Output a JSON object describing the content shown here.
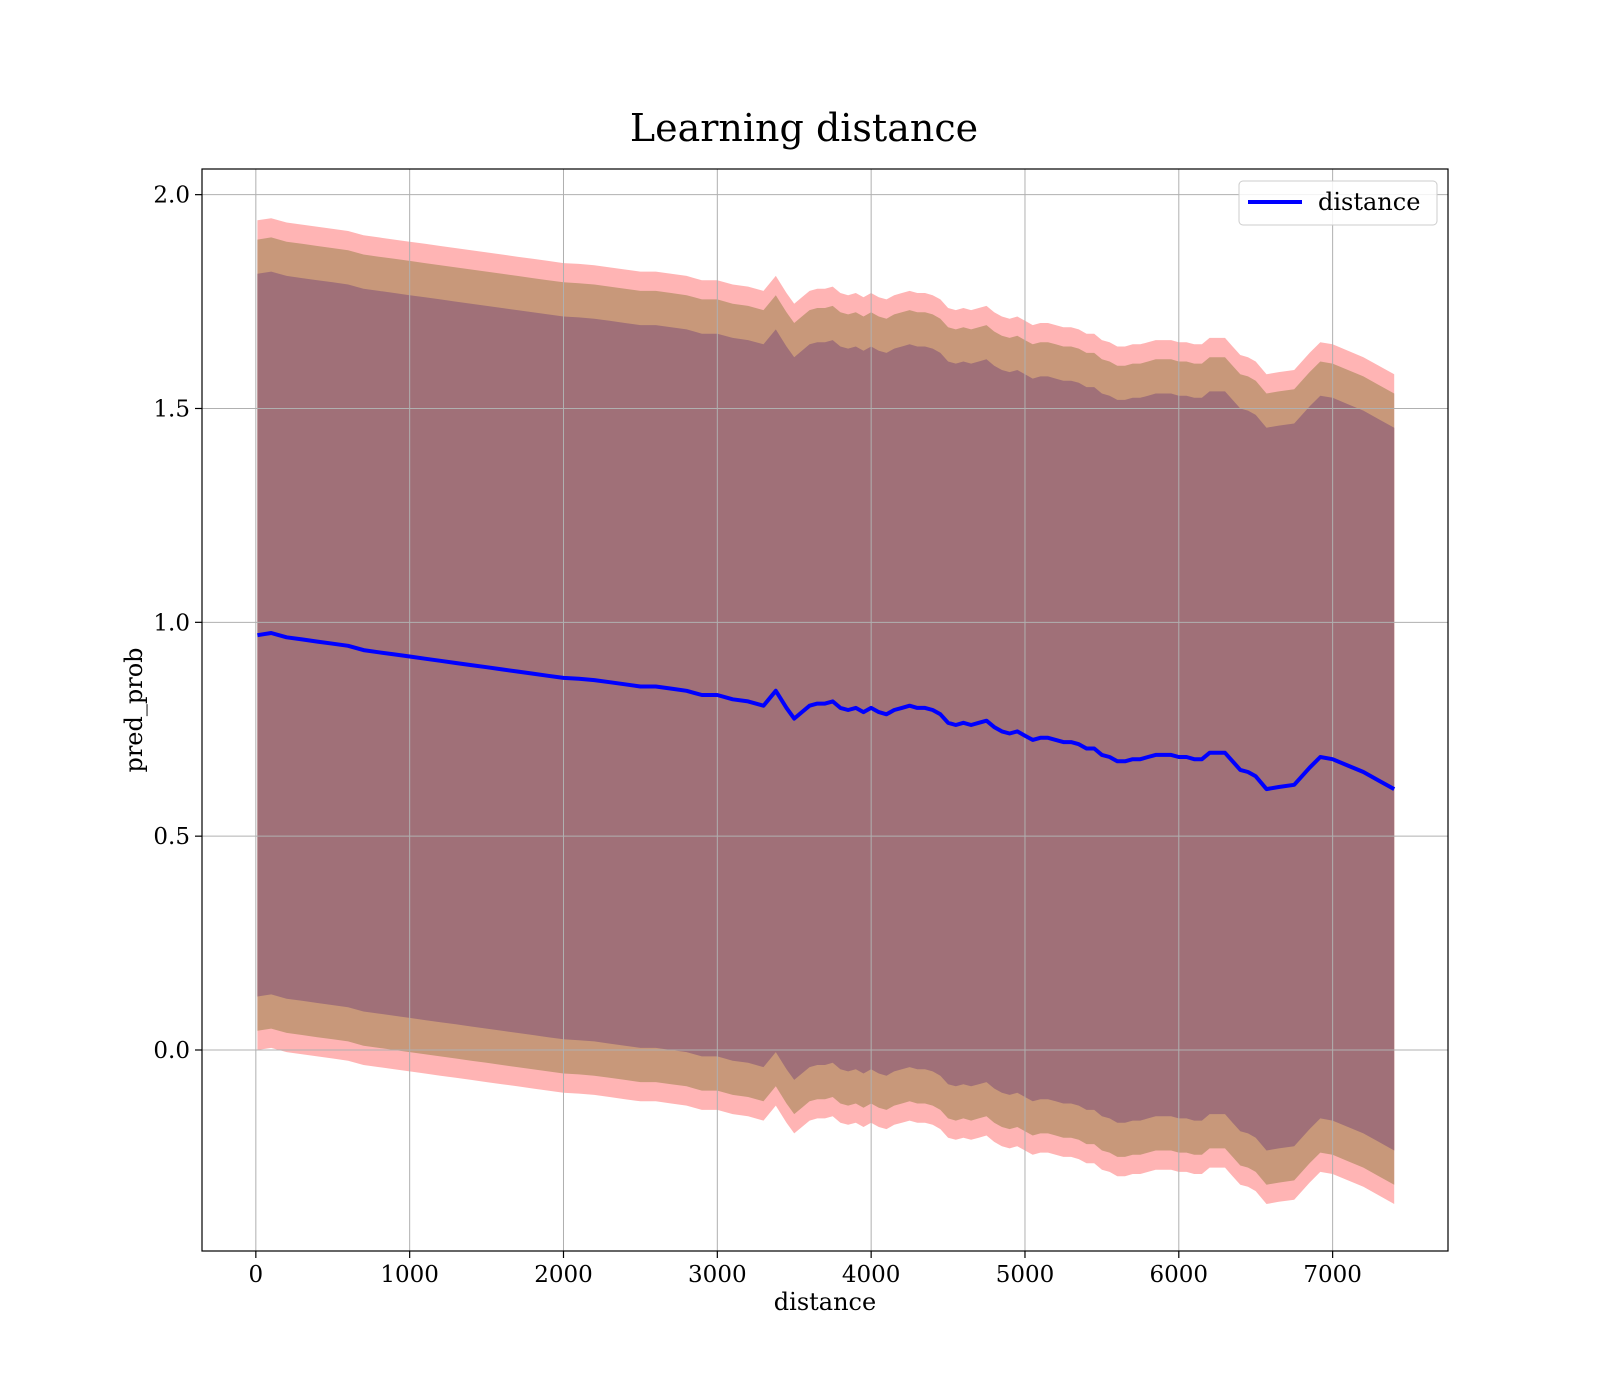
{
  "chart_data": {
    "type": "line",
    "title": "Learning distance",
    "xlabel": "distance",
    "ylabel": "pred_prob",
    "xlim": [
      -350,
      7750
    ],
    "ylim": [
      -0.47,
      2.06
    ],
    "xticks": [
      0,
      1000,
      2000,
      3000,
      4000,
      5000,
      6000,
      7000
    ],
    "xtick_labels": [
      "0",
      "1000",
      "2000",
      "3000",
      "4000",
      "5000",
      "6000",
      "7000"
    ],
    "yticks": [
      0.0,
      0.5,
      1.0,
      1.5,
      2.0
    ],
    "ytick_labels": [
      "0.0",
      "0.5",
      "1.0",
      "1.5",
      "2.0"
    ],
    "grid": true,
    "legend": {
      "position": "upper right",
      "entries": [
        "distance"
      ]
    },
    "colors": {
      "line": "#0000ff",
      "band_outer": "#ff9b9b",
      "band_middle": "#c8987a",
      "band_inner": "#a07078"
    },
    "series": [
      {
        "name": "distance",
        "x": [
          10,
          100,
          200,
          300,
          400,
          500,
          600,
          700,
          800,
          900,
          1000,
          1100,
          1200,
          1300,
          1400,
          1500,
          1600,
          1700,
          1800,
          1900,
          2000,
          2100,
          2200,
          2300,
          2400,
          2500,
          2600,
          2700,
          2800,
          2850,
          2900,
          3000,
          3100,
          3200,
          3300,
          3380,
          3450,
          3500,
          3550,
          3600,
          3650,
          3700,
          3750,
          3800,
          3850,
          3900,
          3950,
          4000,
          4050,
          4100,
          4150,
          4200,
          4250,
          4300,
          4350,
          4400,
          4450,
          4500,
          4550,
          4600,
          4650,
          4700,
          4750,
          4800,
          4850,
          4900,
          4950,
          5000,
          5050,
          5100,
          5150,
          5200,
          5250,
          5300,
          5350,
          5400,
          5450,
          5500,
          5550,
          5600,
          5650,
          5700,
          5750,
          5800,
          5850,
          5900,
          5950,
          6000,
          6050,
          6100,
          6150,
          6200,
          6250,
          6300,
          6350,
          6400,
          6450,
          6500,
          6570,
          6650,
          6750,
          6850,
          6920,
          7000,
          7100,
          7200,
          7300,
          7400
        ],
        "y": [
          0.97,
          0.975,
          0.965,
          0.96,
          0.955,
          0.95,
          0.945,
          0.935,
          0.93,
          0.925,
          0.92,
          0.915,
          0.91,
          0.905,
          0.9,
          0.895,
          0.89,
          0.885,
          0.88,
          0.875,
          0.87,
          0.868,
          0.865,
          0.86,
          0.855,
          0.85,
          0.85,
          0.845,
          0.84,
          0.835,
          0.83,
          0.83,
          0.82,
          0.815,
          0.805,
          0.84,
          0.8,
          0.775,
          0.79,
          0.805,
          0.81,
          0.81,
          0.815,
          0.8,
          0.795,
          0.8,
          0.79,
          0.8,
          0.79,
          0.785,
          0.795,
          0.8,
          0.805,
          0.8,
          0.8,
          0.795,
          0.785,
          0.765,
          0.76,
          0.765,
          0.76,
          0.765,
          0.77,
          0.755,
          0.745,
          0.74,
          0.745,
          0.735,
          0.725,
          0.73,
          0.73,
          0.725,
          0.72,
          0.72,
          0.715,
          0.705,
          0.705,
          0.69,
          0.685,
          0.675,
          0.675,
          0.68,
          0.68,
          0.685,
          0.69,
          0.69,
          0.69,
          0.685,
          0.685,
          0.68,
          0.68,
          0.695,
          0.695,
          0.695,
          0.675,
          0.655,
          0.65,
          0.64,
          0.61,
          0.615,
          0.62,
          0.66,
          0.685,
          0.68,
          0.665,
          0.65,
          0.63,
          0.61
        ]
      }
    ],
    "bands": [
      {
        "label": "",
        "half_width_start": 0.97,
        "half_width_end": 0.97
      },
      {
        "label": "",
        "half_width_start": 0.925,
        "half_width_end": 0.925
      },
      {
        "label": "",
        "half_width_start": 0.845,
        "half_width_end": 0.845
      }
    ]
  }
}
